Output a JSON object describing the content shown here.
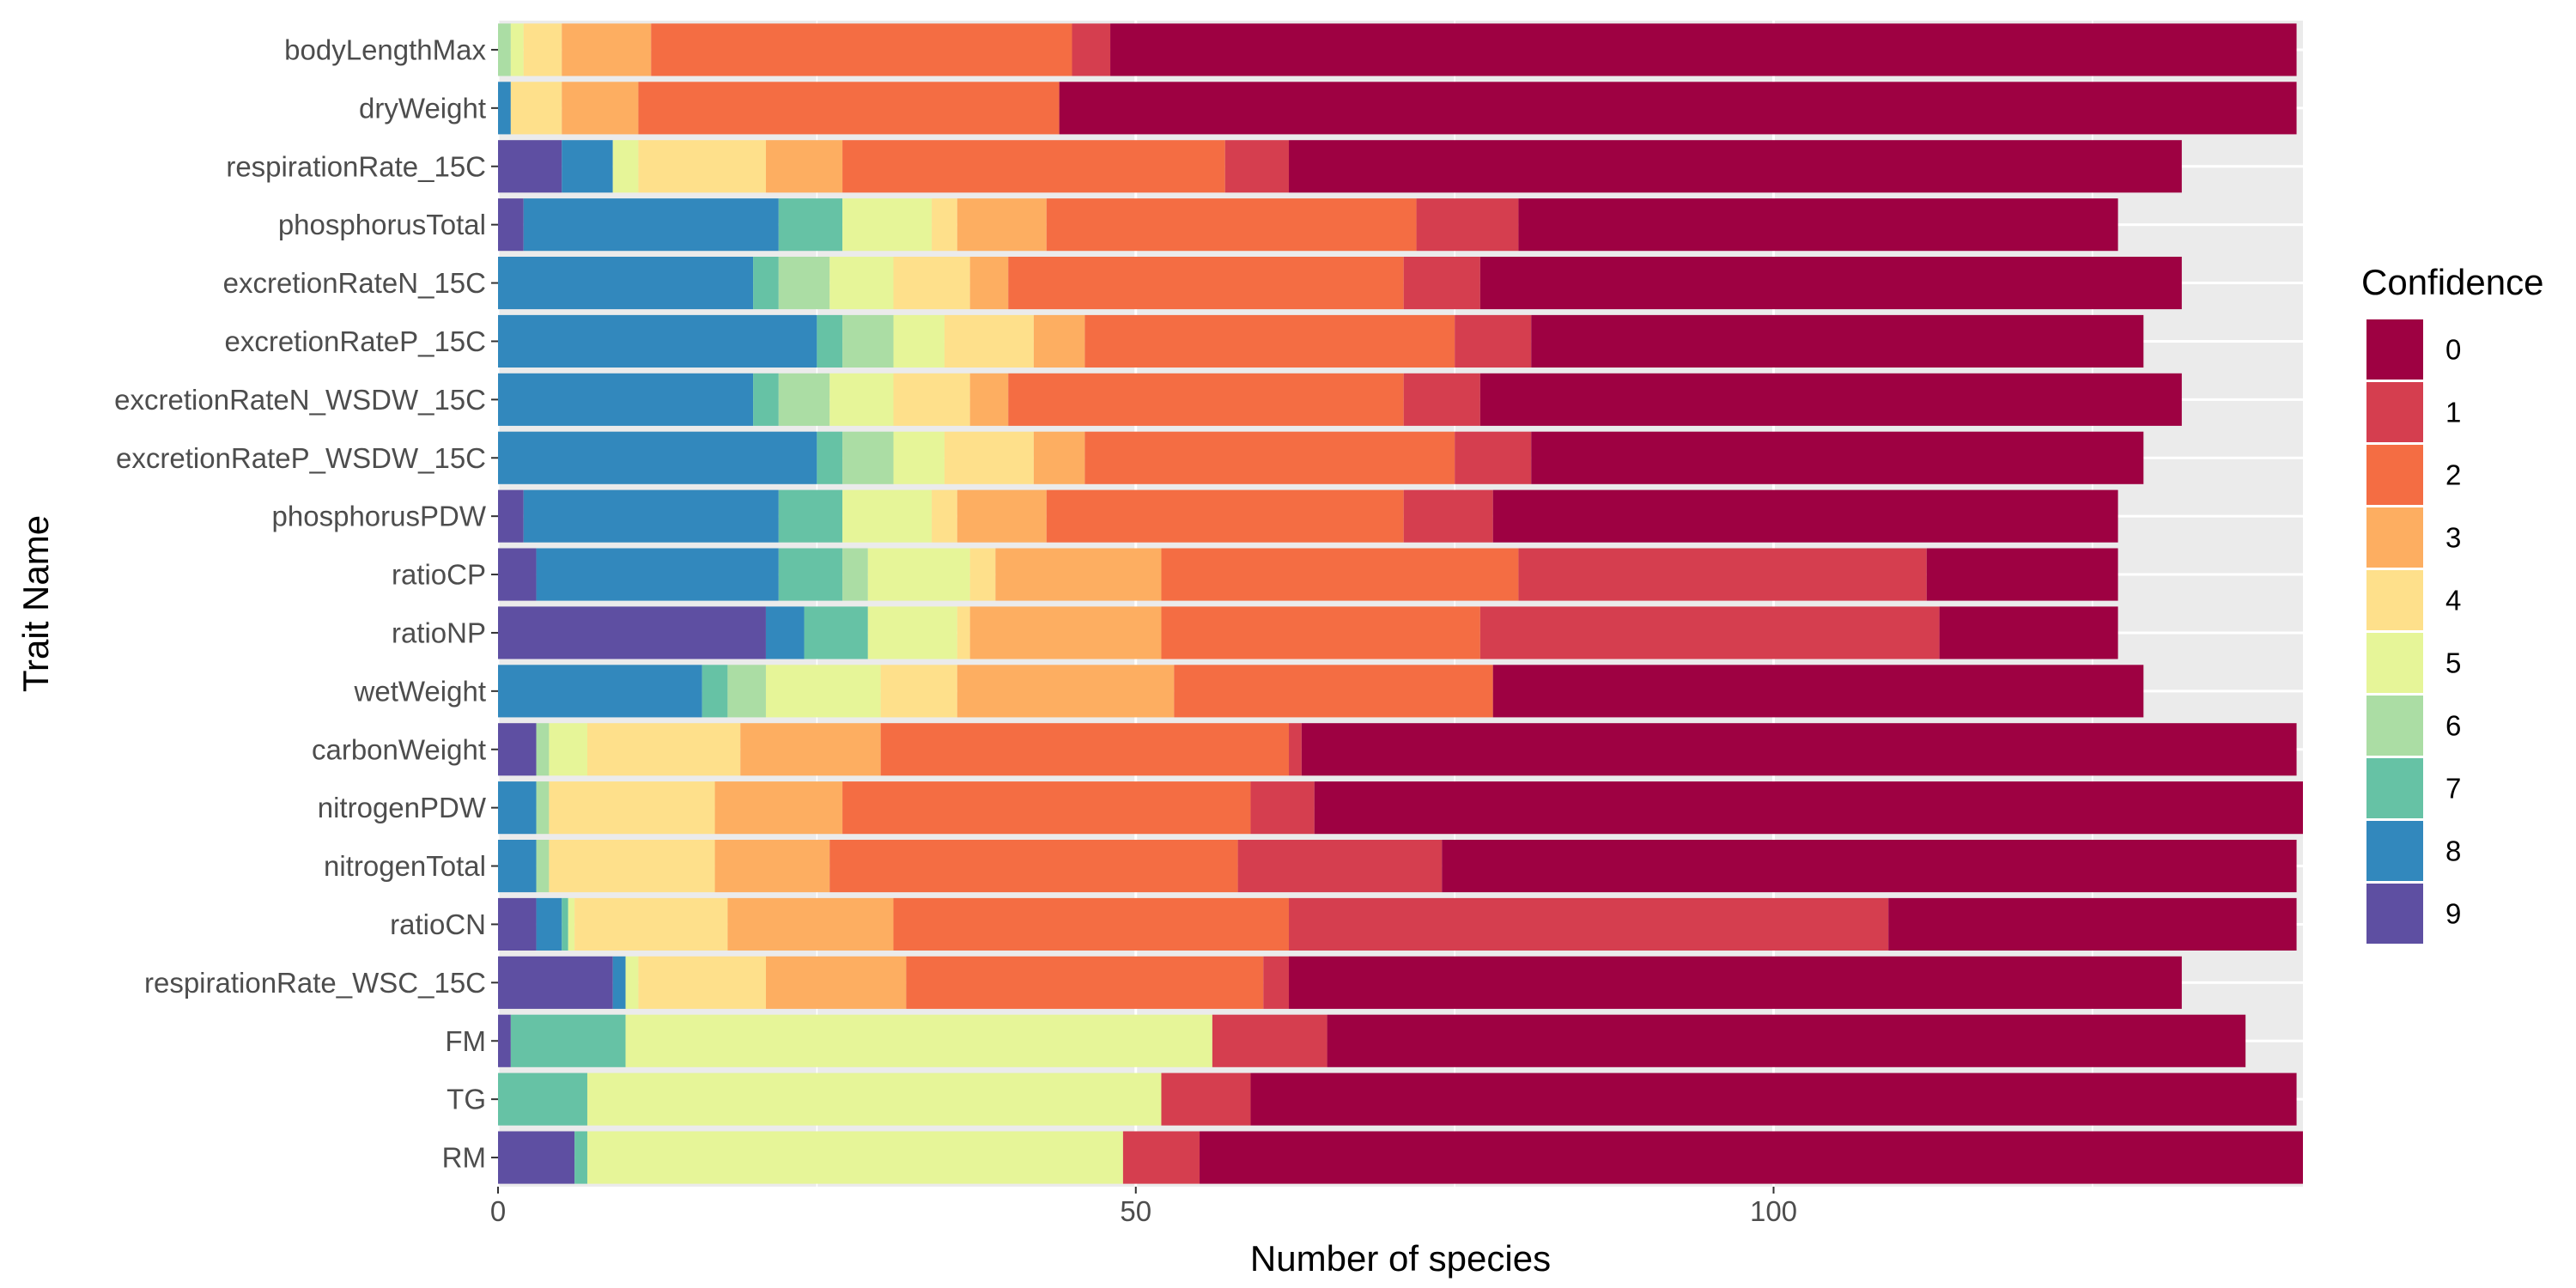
{
  "chart_data": {
    "type": "bar",
    "orientation": "horizontal",
    "stacked": true,
    "xlabel": "Number of species",
    "ylabel": "Trait Name",
    "xlim": [
      0,
      141.5
    ],
    "xticks": [
      0,
      50,
      100
    ],
    "grid": true,
    "legend": {
      "title": "Confidence",
      "position": "right"
    },
    "categories": [
      "bodyLengthMax",
      "dryWeight",
      "respirationRate_15C",
      "phosphorusTotal",
      "excretionRateN_15C",
      "excretionRateP_15C",
      "excretionRateN_WSDW_15C",
      "excretionRateP_WSDW_15C",
      "phosphorusPDW",
      "ratioCP",
      "ratioNP",
      "wetWeight",
      "carbonWeight",
      "nitrogenPDW",
      "nitrogenTotal",
      "ratioCN",
      "respirationRate_WSC_15C",
      "FM",
      "TG",
      "RM"
    ],
    "series": [
      {
        "name": "9",
        "color": "#5E4FA2",
        "values": [
          0,
          0,
          5,
          2,
          0,
          0,
          0,
          0,
          2,
          3,
          21,
          0,
          3,
          0,
          0,
          3,
          9,
          1,
          0,
          6
        ]
      },
      {
        "name": "8",
        "color": "#3288BD",
        "values": [
          0,
          1,
          4,
          20,
          20,
          25,
          20,
          25,
          20,
          19,
          3,
          16,
          0,
          3,
          3,
          2,
          1,
          0,
          0,
          0
        ]
      },
      {
        "name": "7",
        "color": "#66C2A5",
        "values": [
          0,
          0,
          0,
          5,
          2,
          2,
          2,
          2,
          5,
          5,
          5,
          2,
          0,
          0,
          0,
          0.5,
          0,
          9,
          7,
          1
        ]
      },
      {
        "name": "6",
        "color": "#ABDDA4",
        "values": [
          1,
          0,
          0,
          0,
          4,
          4,
          4,
          4,
          0,
          2,
          0,
          3,
          1,
          1,
          1,
          0,
          0,
          0,
          0,
          0
        ]
      },
      {
        "name": "5",
        "color": "#E6F598",
        "values": [
          1,
          0,
          2,
          7,
          5,
          4,
          5,
          4,
          7,
          8,
          7,
          9,
          3,
          0,
          0,
          0.5,
          1,
          46,
          45,
          42
        ]
      },
      {
        "name": "4",
        "color": "#FEE08B",
        "values": [
          3,
          4,
          10,
          2,
          6,
          7,
          6,
          7,
          2,
          2,
          1,
          6,
          12,
          13,
          13,
          12,
          10,
          0,
          0,
          0
        ]
      },
      {
        "name": "3",
        "color": "#FDAE61",
        "values": [
          7,
          6,
          6,
          7,
          3,
          4,
          3,
          4,
          7,
          13,
          15,
          17,
          11,
          10,
          9,
          13,
          11,
          0,
          0,
          0
        ]
      },
      {
        "name": "2",
        "color": "#F46D43",
        "values": [
          33,
          33,
          30,
          29,
          31,
          29,
          31,
          29,
          28,
          28,
          25,
          25,
          32,
          32,
          32,
          31,
          28,
          0,
          0,
          0
        ]
      },
      {
        "name": "1",
        "color": "#D53E4F",
        "values": [
          3,
          0,
          5,
          8,
          6,
          6,
          6,
          6,
          7,
          32,
          36,
          0,
          1,
          5,
          16,
          47,
          2,
          9,
          7,
          6
        ]
      },
      {
        "name": "0",
        "color": "#9E0142",
        "values": [
          93,
          97,
          70,
          47,
          55,
          48,
          55,
          48,
          49,
          15,
          14,
          51,
          78,
          78,
          67,
          32,
          70,
          72,
          82,
          87
        ]
      }
    ]
  }
}
